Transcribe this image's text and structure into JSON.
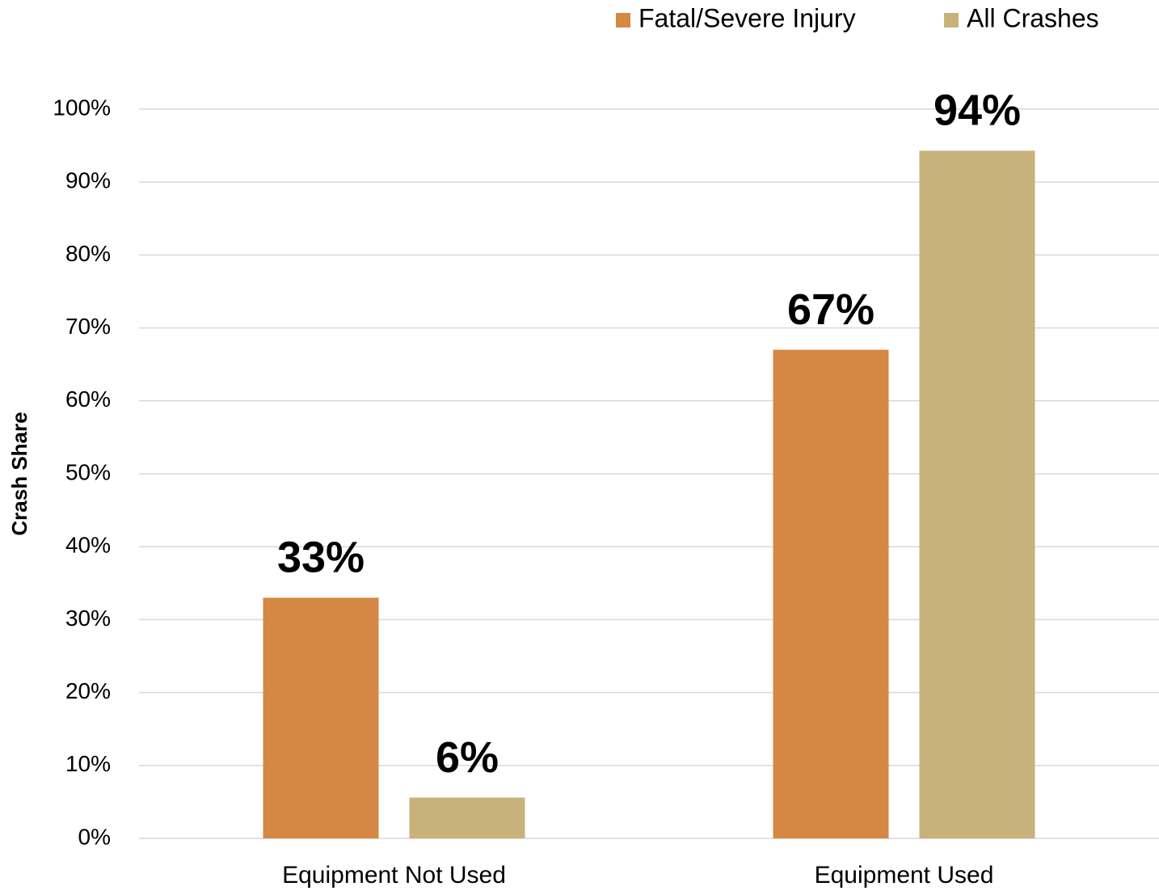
{
  "chart_data": {
    "type": "bar",
    "y_label": "Crash Share",
    "categories": [
      "Equipment Not Used",
      "Equipment Used"
    ],
    "series": [
      {
        "name": "Fatal/Severe Injury",
        "color": "#d48844",
        "values": [
          33,
          67
        ],
        "value_labels": [
          "33%",
          "67%"
        ]
      },
      {
        "name": "All Crashes",
        "color": "#c8b27b",
        "values": [
          5.6,
          94.3
        ],
        "value_labels": [
          "6%",
          "94%"
        ]
      }
    ],
    "ylim": [
      0,
      100
    ],
    "yticks": [
      {
        "value": 0,
        "label": "0%"
      },
      {
        "value": 10,
        "label": "10%"
      },
      {
        "value": 20,
        "label": "20%"
      },
      {
        "value": 30,
        "label": "30%"
      },
      {
        "value": 40,
        "label": "40%"
      },
      {
        "value": 50,
        "label": "50%"
      },
      {
        "value": 60,
        "label": "60%"
      },
      {
        "value": 70,
        "label": "70%"
      },
      {
        "value": 80,
        "label": "80%"
      },
      {
        "value": 90,
        "label": "90%"
      },
      {
        "value": 100,
        "label": "100%"
      }
    ],
    "grid": true,
    "legend": "top-right"
  }
}
